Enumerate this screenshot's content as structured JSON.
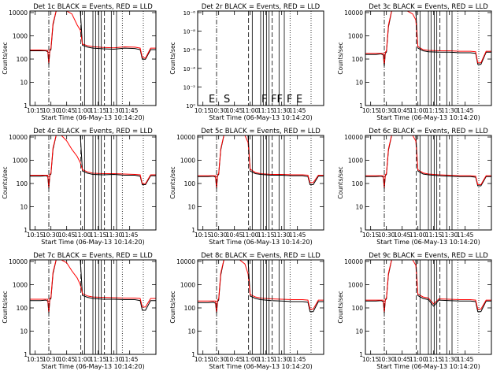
{
  "panels": [
    {
      "title": "Det 1c BLACK = Events, RED = LLD",
      "ylabel": "Counts/sec",
      "xlabel": "Start Time (06-May-13 10:14:20)",
      "kind": "log",
      "ticks": [
        "1",
        "10",
        "100",
        "1000",
        "10000"
      ]
    },
    {
      "title": "Det 2r BLACK = Events, RED = LLD",
      "ylabel": "Counts/sec",
      "xlabel": "Start Time (06-May-13 10:14:20)",
      "kind": "tiny",
      "ticks": [
        "10⁰",
        "10⁻²",
        "10⁻⁴",
        "10⁻⁶",
        "10⁻⁸",
        "10⁻⁶"
      ],
      "letters": [
        "E",
        "S",
        "F",
        "FF",
        "F",
        "E"
      ]
    },
    {
      "title": "Det 3c BLACK = Events, RED = LLD",
      "ylabel": "Counts/sec",
      "xlabel": "Start Time (06-May-13 10:14:20)",
      "kind": "log",
      "ticks": [
        "1",
        "10",
        "100",
        "1000",
        "10000"
      ]
    },
    {
      "title": "Det 4c BLACK = Events, RED = LLD",
      "ylabel": "Counts/sec",
      "xlabel": "Start Time (06-May-13 10:14:20)",
      "kind": "log",
      "ticks": [
        "1",
        "10",
        "100",
        "1000",
        "10000"
      ]
    },
    {
      "title": "Det 5c BLACK = Events, RED = LLD",
      "ylabel": "Counts/sec",
      "xlabel": "Start Time (06-May-13 10:14:20)",
      "kind": "log",
      "ticks": [
        "1",
        "10",
        "100",
        "1000",
        "10000"
      ]
    },
    {
      "title": "Det 6c BLACK = Events, RED = LLD",
      "ylabel": "Counts/sec",
      "xlabel": "Start Time (06-May-13 10:14:20)",
      "kind": "log",
      "ticks": [
        "1",
        "10",
        "100",
        "1000",
        "10000"
      ]
    },
    {
      "title": "Det 7c BLACK = Events, RED = LLD",
      "ylabel": "Counts/sec",
      "xlabel": "Start Time (06-May-13 10:14:20)",
      "kind": "log",
      "ticks": [
        "1",
        "10",
        "100",
        "1000",
        "10000"
      ]
    },
    {
      "title": "Det 8c BLACK = Events, RED = LLD",
      "ylabel": "Counts/sec",
      "xlabel": "Start Time (06-May-13 10:14:20)",
      "kind": "log",
      "ticks": [
        "1",
        "10",
        "100",
        "1000",
        "10000"
      ]
    },
    {
      "title": "Det 9c BLACK = Events, RED = LLD",
      "ylabel": "Counts/sec",
      "xlabel": "Start Time (06-May-13 10:14:20)",
      "kind": "log",
      "ticks": [
        "1",
        "10",
        "100",
        "1000",
        "10000"
      ]
    }
  ],
  "chart_data": {
    "type": "line",
    "xticks": [
      "10:15",
      "10:30",
      "10:45",
      "11:00",
      "11:15",
      "11:30",
      "11:45"
    ],
    "xlim_minutes": [
      10.0,
      130.0
    ],
    "xtick_minutes": [
      15,
      30,
      45,
      60,
      75,
      90,
      105
    ],
    "ylim": [
      1,
      12000
    ],
    "ylog": true,
    "series_colors": {
      "events": "#000000",
      "lld": "#ff0000"
    },
    "marker_lines": {
      "dashdot_minutes": [
        28
      ],
      "dashed_minutes": [
        58.5,
        81
      ],
      "solid_minutes": [
        62,
        70,
        72.5,
        75.5,
        78,
        87.5,
        92.5
      ],
      "dotted_minutes": [
        98,
        118
      ]
    },
    "panel_series": [
      {
        "events": {
          "x": [
            10,
            20,
            25,
            27,
            28,
            29,
            30,
            32,
            35,
            40,
            45,
            50,
            55,
            58,
            60,
            65,
            70,
            80,
            90,
            100,
            110,
            115,
            117,
            120,
            125,
            130
          ],
          "y": [
            230,
            230,
            230,
            210,
            60,
            230,
            260,
            3000,
            12000,
            12000,
            12000,
            12000,
            12000,
            12000,
            400,
            330,
            300,
            280,
            270,
            300,
            290,
            260,
            100,
            100,
            260,
            260
          ]
        },
        "lld": {
          "x": [
            10,
            20,
            27,
            28,
            29,
            30,
            32,
            35,
            40,
            45,
            50,
            55,
            58,
            60,
            65,
            70,
            80,
            90,
            100,
            110,
            115,
            117,
            120,
            125,
            130
          ],
          "y": [
            250,
            250,
            240,
            70,
            250,
            300,
            3500,
            12000,
            12000,
            12000,
            9000,
            3000,
            1800,
            450,
            380,
            350,
            320,
            310,
            340,
            330,
            300,
            120,
            110,
            300,
            300
          ]
        }
      },
      {
        "events": {
          "x": [],
          "y": []
        },
        "lld": {
          "x": [],
          "y": []
        }
      },
      {
        "events": {
          "x": [
            10,
            20,
            25,
            27,
            28,
            29,
            30,
            32,
            35,
            40,
            45,
            50,
            55,
            58,
            60,
            65,
            70,
            80,
            90,
            100,
            110,
            115,
            117,
            120,
            125,
            130
          ],
          "y": [
            160,
            160,
            170,
            150,
            50,
            180,
            200,
            2500,
            12000,
            12000,
            12000,
            12000,
            12000,
            12000,
            300,
            230,
            210,
            200,
            200,
            190,
            190,
            180,
            60,
            60,
            200,
            200
          ]
        },
        "lld": {
          "x": [
            10,
            20,
            27,
            28,
            29,
            30,
            32,
            35,
            40,
            45,
            50,
            55,
            58,
            60,
            65,
            70,
            80,
            90,
            100,
            110,
            115,
            117,
            120,
            125,
            130
          ],
          "y": [
            180,
            180,
            180,
            60,
            200,
            230,
            3000,
            12000,
            12000,
            12000,
            12000,
            9000,
            5000,
            350,
            260,
            240,
            230,
            230,
            220,
            220,
            210,
            70,
            70,
            220,
            220
          ]
        }
      },
      {
        "events": {
          "x": [
            10,
            20,
            25,
            27,
            28,
            29,
            30,
            32,
            35,
            40,
            45,
            50,
            55,
            58,
            60,
            65,
            70,
            80,
            90,
            100,
            110,
            115,
            117,
            120,
            125,
            130
          ],
          "y": [
            210,
            210,
            220,
            200,
            60,
            230,
            260,
            3000,
            12000,
            12000,
            12000,
            12000,
            12000,
            12000,
            350,
            280,
            250,
            240,
            250,
            230,
            230,
            210,
            90,
            90,
            220,
            220
          ]
        },
        "lld": {
          "x": [
            10,
            20,
            27,
            28,
            29,
            30,
            32,
            35,
            40,
            45,
            50,
            55,
            58,
            60,
            65,
            70,
            80,
            90,
            100,
            110,
            115,
            117,
            120,
            125,
            130
          ],
          "y": [
            230,
            230,
            230,
            70,
            250,
            280,
            3500,
            12000,
            12000,
            7000,
            3000,
            1500,
            800,
            400,
            320,
            280,
            270,
            270,
            260,
            250,
            240,
            100,
            100,
            240,
            240
          ]
        }
      },
      {
        "events": {
          "x": [
            10,
            20,
            25,
            27,
            28,
            29,
            30,
            32,
            35,
            40,
            45,
            50,
            55,
            58,
            60,
            65,
            70,
            80,
            90,
            100,
            110,
            115,
            117,
            120,
            125,
            130
          ],
          "y": [
            200,
            200,
            210,
            190,
            60,
            220,
            250,
            2800,
            12000,
            12000,
            12000,
            12000,
            12000,
            12000,
            350,
            270,
            250,
            230,
            230,
            220,
            220,
            200,
            90,
            90,
            210,
            210
          ]
        },
        "lld": {
          "x": [
            10,
            20,
            27,
            28,
            29,
            30,
            32,
            35,
            40,
            45,
            50,
            55,
            58,
            60,
            65,
            70,
            80,
            90,
            100,
            110,
            115,
            117,
            120,
            125,
            130
          ],
          "y": [
            220,
            220,
            220,
            70,
            240,
            270,
            3200,
            12000,
            12000,
            12000,
            12000,
            12000,
            6000,
            420,
            300,
            270,
            250,
            250,
            240,
            240,
            230,
            110,
            110,
            230,
            230
          ]
        }
      },
      {
        "events": {
          "x": [
            10,
            20,
            25,
            27,
            28,
            29,
            30,
            32,
            35,
            40,
            45,
            50,
            55,
            58,
            60,
            65,
            70,
            80,
            90,
            100,
            110,
            115,
            117,
            120,
            125,
            130
          ],
          "y": [
            200,
            200,
            210,
            190,
            60,
            220,
            250,
            2800,
            12000,
            12000,
            12000,
            12000,
            12000,
            12000,
            350,
            260,
            240,
            220,
            210,
            200,
            200,
            190,
            80,
            80,
            200,
            200
          ]
        },
        "lld": {
          "x": [
            10,
            20,
            27,
            28,
            29,
            30,
            32,
            35,
            40,
            45,
            50,
            55,
            58,
            60,
            65,
            70,
            80,
            90,
            100,
            110,
            115,
            117,
            120,
            125,
            130
          ],
          "y": [
            220,
            220,
            220,
            70,
            240,
            270,
            3200,
            12000,
            12000,
            12000,
            12000,
            12000,
            7000,
            400,
            290,
            260,
            240,
            230,
            220,
            220,
            210,
            90,
            90,
            220,
            220
          ]
        }
      },
      {
        "events": {
          "x": [
            10,
            20,
            25,
            27,
            28,
            29,
            30,
            32,
            35,
            40,
            45,
            50,
            55,
            58,
            60,
            65,
            70,
            80,
            90,
            100,
            110,
            115,
            117,
            120,
            125,
            130
          ],
          "y": [
            210,
            210,
            220,
            200,
            60,
            230,
            260,
            3000,
            12000,
            12000,
            12000,
            12000,
            12000,
            12000,
            350,
            290,
            260,
            240,
            240,
            230,
            230,
            210,
            80,
            80,
            210,
            210
          ]
        },
        "lld": {
          "x": [
            10,
            20,
            27,
            28,
            29,
            30,
            32,
            35,
            40,
            45,
            50,
            55,
            58,
            60,
            65,
            70,
            80,
            90,
            100,
            110,
            115,
            117,
            120,
            125,
            130
          ],
          "y": [
            240,
            240,
            240,
            70,
            260,
            290,
            3500,
            12000,
            12000,
            9000,
            4000,
            2000,
            1000,
            420,
            330,
            300,
            290,
            280,
            270,
            270,
            260,
            110,
            110,
            260,
            260
          ]
        }
      },
      {
        "events": {
          "x": [
            10,
            20,
            25,
            27,
            28,
            29,
            30,
            32,
            35,
            40,
            45,
            50,
            55,
            58,
            60,
            65,
            70,
            80,
            90,
            100,
            110,
            115,
            117,
            120,
            125,
            130
          ],
          "y": [
            170,
            170,
            180,
            160,
            60,
            190,
            220,
            2600,
            12000,
            12000,
            12000,
            12000,
            12000,
            12000,
            330,
            260,
            230,
            210,
            200,
            190,
            190,
            180,
            70,
            70,
            190,
            190
          ]
        },
        "lld": {
          "x": [
            10,
            20,
            27,
            28,
            29,
            30,
            32,
            35,
            40,
            45,
            50,
            55,
            58,
            60,
            65,
            70,
            80,
            90,
            100,
            110,
            115,
            117,
            120,
            125,
            130
          ],
          "y": [
            200,
            200,
            200,
            70,
            220,
            250,
            3200,
            12000,
            12000,
            12000,
            12000,
            8000,
            3000,
            380,
            300,
            270,
            250,
            240,
            230,
            230,
            220,
            90,
            90,
            220,
            220
          ]
        }
      },
      {
        "events": {
          "x": [
            10,
            20,
            25,
            27,
            28,
            29,
            30,
            32,
            35,
            40,
            45,
            50,
            55,
            58,
            60,
            65,
            70,
            75,
            80,
            90,
            100,
            110,
            115,
            117,
            120,
            125,
            130
          ],
          "y": [
            200,
            200,
            210,
            190,
            60,
            220,
            250,
            2800,
            12000,
            12000,
            12000,
            12000,
            12000,
            12000,
            340,
            260,
            230,
            120,
            220,
            210,
            200,
            200,
            190,
            70,
            70,
            200,
            200
          ]
        },
        "lld": {
          "x": [
            10,
            20,
            27,
            28,
            29,
            30,
            32,
            35,
            40,
            45,
            50,
            55,
            58,
            60,
            65,
            70,
            75,
            80,
            90,
            100,
            110,
            115,
            117,
            120,
            125,
            130
          ],
          "y": [
            220,
            220,
            220,
            70,
            240,
            270,
            3200,
            12000,
            12000,
            12000,
            12000,
            12000,
            7000,
            400,
            300,
            270,
            150,
            250,
            240,
            230,
            230,
            220,
            90,
            90,
            220,
            220
          ]
        }
      }
    ]
  }
}
